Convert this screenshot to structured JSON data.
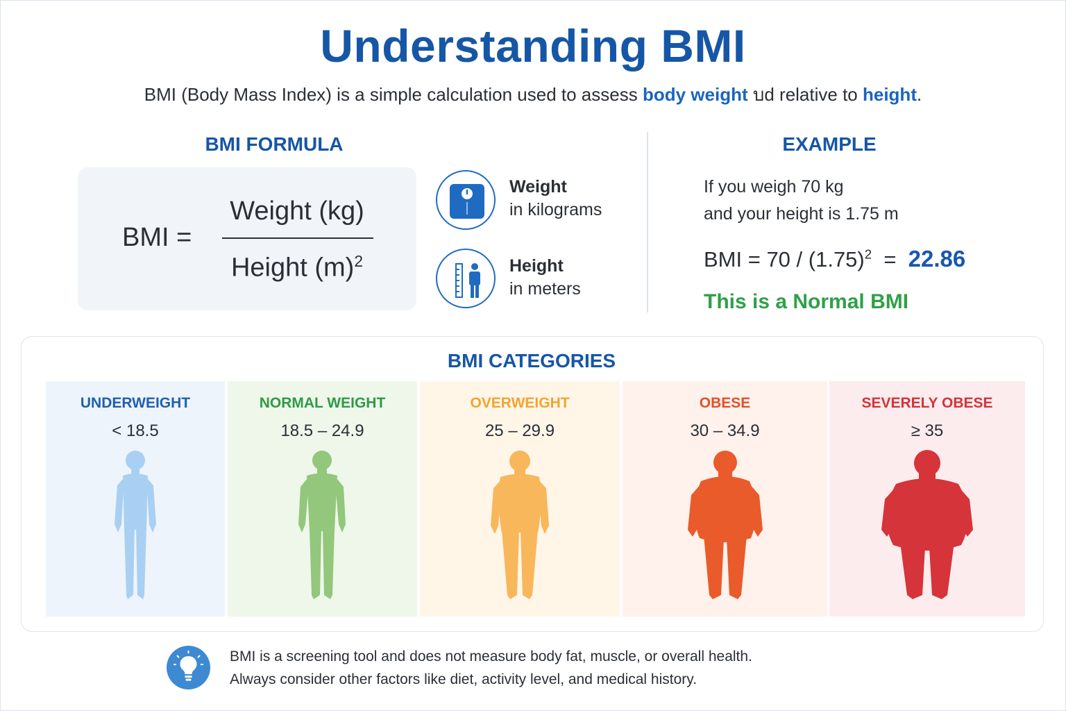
{
  "title": "Understanding BMI",
  "subtitle": {
    "part1": "BMI (Body Mass Index) is a simple calculation used to assess ",
    "highlight1": "body weight",
    "part2": " บd relative to ",
    "highlight2": "height",
    "part3": "."
  },
  "formula": {
    "heading": "BMI FORMULA",
    "lhs": "BMI  =",
    "numerator": "Weight (kg)",
    "denominator": "Height (m)",
    "exponent": "2"
  },
  "legend": {
    "weight": {
      "title": "Weight",
      "subtitle": "in kilograms",
      "icon": "scale-icon"
    },
    "height": {
      "title": "Height",
      "subtitle": "in meters",
      "icon": "ruler-person-icon"
    }
  },
  "example": {
    "heading": "EXAMPLE",
    "line1": "If you weigh 70 kg",
    "line2": "and your height is 1.75 m",
    "formula_lhs": "BMI = 70 / (1.75)",
    "exponent": "2",
    "equals": "  =  ",
    "result": "22.86",
    "verdict": "This is a Normal BMI"
  },
  "categories": {
    "heading": "BMI CATEGORIES",
    "items": [
      {
        "name": "UNDERWEIGHT",
        "range": "< 18.5",
        "color": "#1f5fae",
        "figure_color": "#a9d0f2",
        "bg": "#eef4fb"
      },
      {
        "name": "NORMAL WEIGHT",
        "range": "18.5 – 24.9",
        "color": "#2f9a45",
        "figure_color": "#93c77c",
        "bg": "#eef7ea"
      },
      {
        "name": "OVERWEIGHT",
        "range": "25 – 29.9",
        "color": "#f2a431",
        "figure_color": "#f8b75b",
        "bg": "#fff6e8"
      },
      {
        "name": "OBESE",
        "range": "30 – 34.9",
        "color": "#e1512a",
        "figure_color": "#e95b2b",
        "bg": "#fff1ec"
      },
      {
        "name": "SEVERELY OBESE",
        "range": "≥ 35",
        "color": "#d3333a",
        "figure_color": "#d5343a",
        "bg": "#fdecee"
      }
    ]
  },
  "note": {
    "icon": "lightbulb-icon",
    "line1": "BMI is a screening tool and does not measure body fat, muscle, or overall health.",
    "line2": "Always consider other factors like diet, activity level, and medical history."
  }
}
